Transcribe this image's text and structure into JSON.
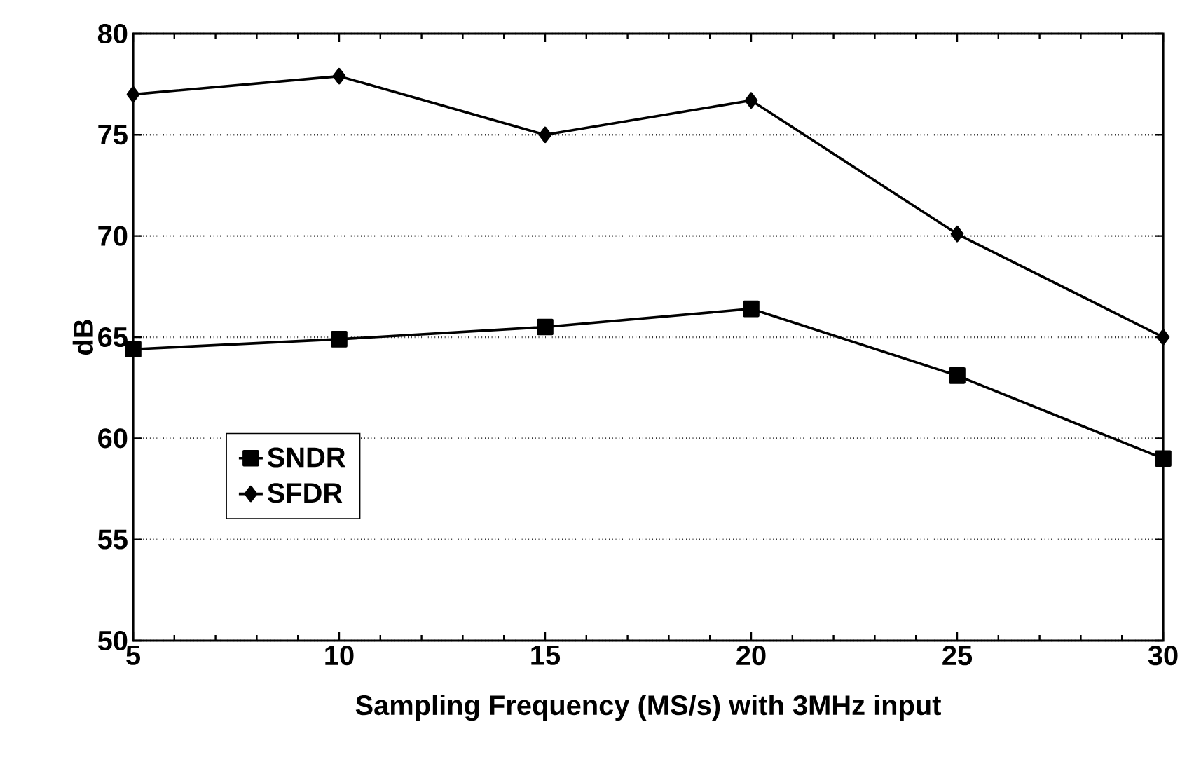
{
  "chart_data": {
    "type": "line",
    "xlabel": "Sampling Frequency (MS/s) with 3MHz input",
    "ylabel": "dB",
    "x": [
      5,
      10,
      15,
      20,
      25,
      30
    ],
    "series": [
      {
        "name": "SNDR",
        "color": "#000000",
        "marker": "square",
        "values": [
          64.4,
          64.9,
          65.5,
          66.4,
          63.1,
          59.0
        ]
      },
      {
        "name": "SFDR",
        "color": "#000000",
        "marker": "diamond",
        "values": [
          77.0,
          77.9,
          75.0,
          76.7,
          70.1,
          65.0
        ]
      }
    ],
    "xlim": [
      5,
      30
    ],
    "xticks": [
      5,
      10,
      15,
      20,
      25,
      30
    ],
    "ylim": [
      50,
      80
    ],
    "yticks": [
      50,
      55,
      60,
      65,
      70,
      75,
      80
    ],
    "grid": "y",
    "legend": "bottom left",
    "line_style": "solid"
  }
}
